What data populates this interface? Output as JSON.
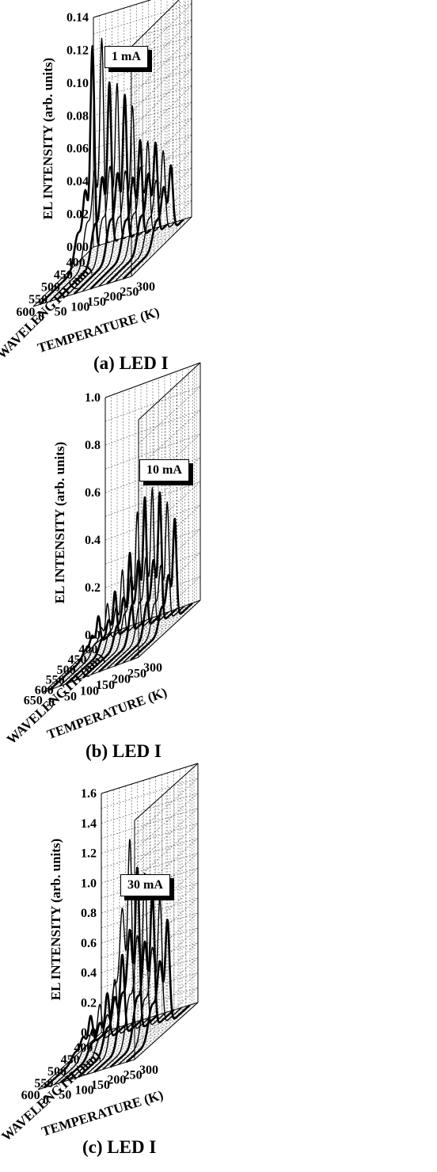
{
  "chart_data": [
    {
      "type": "3d-line",
      "panel": "a",
      "caption": "(a) LED I",
      "current_label": "1 mA",
      "zlabel": "EL INTENSITY  (arb. units)",
      "xlabel": "WAVELENGTH  (nm)",
      "ylabel": "TEMPERATURE  (K)",
      "zlim": [
        0,
        0.14
      ],
      "zticks": [
        "0.00",
        "0.02",
        "0.04",
        "0.06",
        "0.08",
        "0.10",
        "0.12",
        "0.14"
      ],
      "xlim": [
        380,
        620
      ],
      "xticks": [
        400,
        450,
        500,
        550,
        600
      ],
      "ylim": [
        0,
        300
      ],
      "yticks": [
        0,
        50,
        100,
        150,
        200,
        250,
        300
      ],
      "series": [
        {
          "temperature": 20,
          "peak_wavelength": 410,
          "peak": 0.125,
          "shoulder": 0.04
        },
        {
          "temperature": 50,
          "peak_wavelength": 412,
          "peak": 0.128,
          "shoulder": 0.05
        },
        {
          "temperature": 75,
          "peak_wavelength": 414,
          "peak": 0.1,
          "shoulder": 0.045
        },
        {
          "temperature": 100,
          "peak_wavelength": 416,
          "peak": 0.098,
          "shoulder": 0.05
        },
        {
          "temperature": 125,
          "peak_wavelength": 418,
          "peak": 0.09,
          "shoulder": 0.045
        },
        {
          "temperature": 150,
          "peak_wavelength": 420,
          "peak": 0.082,
          "shoulder": 0.045
        },
        {
          "temperature": 175,
          "peak_wavelength": 422,
          "peak": 0.06,
          "shoulder": 0.04
        },
        {
          "temperature": 200,
          "peak_wavelength": 424,
          "peak": 0.058,
          "shoulder": 0.045
        },
        {
          "temperature": 225,
          "peak_wavelength": 426,
          "peak": 0.056,
          "shoulder": 0.04
        },
        {
          "temperature": 250,
          "peak_wavelength": 428,
          "peak": 0.05,
          "shoulder": 0.035
        },
        {
          "temperature": 275,
          "peak_wavelength": 430,
          "peak": 0.04,
          "shoulder": 0.03
        }
      ]
    },
    {
      "type": "3d-line",
      "panel": "b",
      "caption": "(b) LED I",
      "current_label": "10 mA",
      "zlabel": "EL INTENSITY  (arb. units)",
      "xlabel": "WAVELENGTH  (nm)",
      "ylabel": "TEMPERATURE  (K)",
      "zlim": [
        0,
        1.0
      ],
      "zticks": [
        "0.0",
        "0.2",
        "0.4",
        "0.6",
        "0.8",
        "1.0"
      ],
      "xlim": [
        380,
        660
      ],
      "xticks": [
        400,
        450,
        500,
        550,
        600,
        650
      ],
      "ylim": [
        0,
        300
      ],
      "yticks": [
        0,
        50,
        100,
        150,
        200,
        250,
        300
      ],
      "series": [
        {
          "temperature": 20,
          "peak_wavelength": 440,
          "peak": 0.12,
          "shoulder": 0.06
        },
        {
          "temperature": 50,
          "peak_wavelength": 442,
          "peak": 0.16,
          "shoulder": 0.08
        },
        {
          "temperature": 75,
          "peak_wavelength": 444,
          "peak": 0.2,
          "shoulder": 0.1
        },
        {
          "temperature": 100,
          "peak_wavelength": 446,
          "peak": 0.28,
          "shoulder": 0.14
        },
        {
          "temperature": 125,
          "peak_wavelength": 448,
          "peak": 0.34,
          "shoulder": 0.17
        },
        {
          "temperature": 150,
          "peak_wavelength": 450,
          "peak": 0.5,
          "shoulder": 0.25
        },
        {
          "temperature": 175,
          "peak_wavelength": 452,
          "peak": 0.55,
          "shoulder": 0.3
        },
        {
          "temperature": 200,
          "peak_wavelength": 454,
          "peak": 0.58,
          "shoulder": 0.3
        },
        {
          "temperature": 225,
          "peak_wavelength": 456,
          "peak": 0.55,
          "shoulder": 0.28
        },
        {
          "temperature": 250,
          "peak_wavelength": 458,
          "peak": 0.5,
          "shoulder": 0.25
        },
        {
          "temperature": 275,
          "peak_wavelength": 460,
          "peak": 0.42,
          "shoulder": 0.2
        }
      ]
    },
    {
      "type": "3d-line",
      "panel": "c",
      "caption": "(c) LED I",
      "current_label": "30 mA",
      "zlabel": "EL INTENSITY  (arb. units)",
      "xlabel": "WAVELENGTH  (nm)",
      "ylabel": "TEMPERATURE  (K)",
      "zlim": [
        0,
        1.6
      ],
      "zticks": [
        "0.0",
        "0.2",
        "0.4",
        "0.6",
        "0.8",
        "1.0",
        "1.2",
        "1.4",
        "1.6"
      ],
      "xlim": [
        380,
        620
      ],
      "xticks": [
        400,
        450,
        500,
        550,
        600
      ],
      "ylim": [
        0,
        300
      ],
      "yticks": [
        0,
        50,
        100,
        150,
        200,
        250,
        300
      ],
      "series": [
        {
          "temperature": 20,
          "peak_wavelength": 445,
          "peak": 0.2,
          "shoulder": 0.1
        },
        {
          "temperature": 50,
          "peak_wavelength": 447,
          "peak": 0.26,
          "shoulder": 0.13
        },
        {
          "temperature": 75,
          "peak_wavelength": 449,
          "peak": 0.32,
          "shoulder": 0.16
        },
        {
          "temperature": 100,
          "peak_wavelength": 451,
          "peak": 0.4,
          "shoulder": 0.2
        },
        {
          "temperature": 125,
          "peak_wavelength": 453,
          "peak": 0.55,
          "shoulder": 0.3
        },
        {
          "temperature": 150,
          "peak_wavelength": 455,
          "peak": 1.3,
          "shoulder": 0.85
        },
        {
          "temperature": 175,
          "peak_wavelength": 457,
          "peak": 1.1,
          "shoulder": 0.7
        },
        {
          "temperature": 200,
          "peak_wavelength": 459,
          "peak": 1.05,
          "shoulder": 0.65
        },
        {
          "temperature": 225,
          "peak_wavelength": 461,
          "peak": 0.9,
          "shoulder": 0.6
        },
        {
          "temperature": 250,
          "peak_wavelength": 463,
          "peak": 0.85,
          "shoulder": 0.55
        },
        {
          "temperature": 275,
          "peak_wavelength": 465,
          "peak": 0.7,
          "shoulder": 0.45
        }
      ]
    }
  ]
}
